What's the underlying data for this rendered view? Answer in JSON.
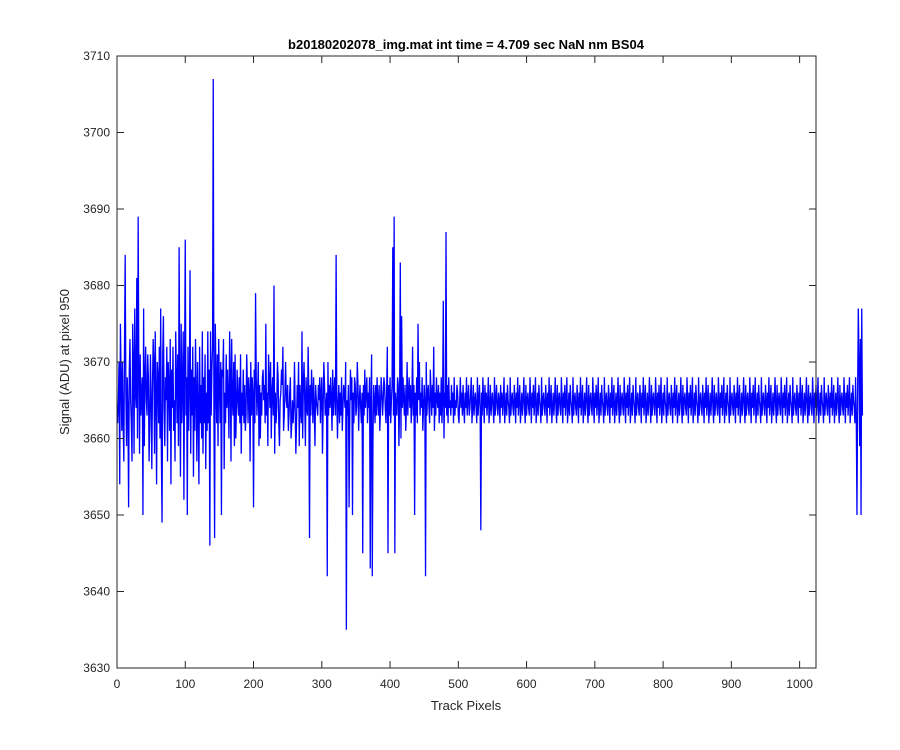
{
  "chart_data": {
    "type": "line",
    "title": "b20180202078_img.mat int time = 4.709 sec  NaN nm BS04",
    "xlabel": "Track Pixels",
    "ylabel": "Signal (ADU) at pixel 950",
    "xlim": [
      0,
      1024
    ],
    "ylim": [
      3630,
      3710
    ],
    "xticks": [
      0,
      100,
      200,
      300,
      400,
      500,
      600,
      700,
      800,
      900,
      1000
    ],
    "yticks": [
      3630,
      3640,
      3650,
      3660,
      3670,
      3680,
      3690,
      3700,
      3710
    ],
    "grid": false,
    "legend": "none",
    "series": [
      {
        "color": "#0000ff",
        "x_start": 1,
        "x_step": 1,
        "values": [
          3662,
          3665,
          3670,
          3654,
          3675,
          3668,
          3661,
          3670,
          3662,
          3657,
          3672,
          3684,
          3666,
          3659,
          3668,
          3664,
          3651,
          3669,
          3673,
          3665,
          3662,
          3657,
          3675,
          3670,
          3658,
          3677,
          3666,
          3664,
          3681,
          3660,
          3689,
          3669,
          3658,
          3671,
          3663,
          3666,
          3668,
          3650,
          3677,
          3659,
          3668,
          3672,
          3665,
          3663,
          3671,
          3668,
          3657,
          3662,
          3671,
          3665,
          3656,
          3667,
          3673,
          3670,
          3658,
          3674,
          3666,
          3654,
          3670,
          3668,
          3662,
          3672,
          3660,
          3677,
          3658,
          3649,
          3671,
          3676,
          3664,
          3659,
          3668,
          3665,
          3672,
          3657,
          3670,
          3667,
          3661,
          3673,
          3654,
          3669,
          3664,
          3672,
          3661,
          3665,
          3657,
          3674,
          3668,
          3662,
          3671,
          3659,
          3685,
          3666,
          3655,
          3675,
          3662,
          3667,
          3674,
          3652,
          3670,
          3686,
          3663,
          3668,
          3650,
          3672,
          3661,
          3667,
          3682,
          3658,
          3669,
          3663,
          3672,
          3655,
          3668,
          3661,
          3673,
          3666,
          3657,
          3670,
          3664,
          3654,
          3672,
          3662,
          3667,
          3660,
          3674,
          3658,
          3668,
          3662,
          3671,
          3656,
          3666,
          3661,
          3674,
          3662,
          3669,
          3646,
          3674,
          3663,
          3669,
          3672,
          3707,
          3663,
          3647,
          3675,
          3668,
          3662,
          3671,
          3659,
          3673,
          3667,
          3662,
          3670,
          3650,
          3669,
          3668,
          3673,
          3656,
          3666,
          3662,
          3671,
          3664,
          3669,
          3665,
          3660,
          3674,
          3668,
          3657,
          3673,
          3665,
          3663,
          3670,
          3659,
          3671,
          3660,
          3664,
          3669,
          3665,
          3663,
          3668,
          3662,
          3671,
          3658,
          3666,
          3663,
          3669,
          3662,
          3667,
          3661,
          3663,
          3671,
          3667,
          3662,
          3668,
          3666,
          3657,
          3670,
          3663,
          3668,
          3666,
          3651,
          3669,
          3662,
          3679,
          3668,
          3663,
          3666,
          3670,
          3659,
          3667,
          3660,
          3666,
          3663,
          3668,
          3669,
          3665,
          3667,
          3662,
          3675,
          3663,
          3666,
          3659,
          3671,
          3668,
          3664,
          3670,
          3660,
          3666,
          3668,
          3663,
          3680,
          3658,
          3666,
          3662,
          3664,
          3670,
          3668,
          3662,
          3659,
          3665,
          3666,
          3669,
          3667,
          3672,
          3661,
          3663,
          3666,
          3670,
          3665,
          3664,
          3667,
          3661,
          3663,
          3666,
          3668,
          3660,
          3662,
          3665,
          3662,
          3664,
          3670,
          3664,
          3658,
          3662,
          3667,
          3664,
          3670,
          3659,
          3667,
          3664,
          3662,
          3674,
          3660,
          3667,
          3670,
          3665,
          3659,
          3668,
          3664,
          3663,
          3672,
          3666,
          3647,
          3667,
          3663,
          3669,
          3666,
          3662,
          3668,
          3664,
          3659,
          3667,
          3665,
          3664,
          3663,
          3667,
          3665,
          3668,
          3662,
          3666,
          3668,
          3658,
          3664,
          3670,
          3667,
          3663,
          3664,
          3666,
          3642,
          3670,
          3663,
          3667,
          3664,
          3668,
          3665,
          3661,
          3669,
          3663,
          3666,
          3668,
          3663,
          3684,
          3665,
          3660,
          3665,
          3667,
          3662,
          3666,
          3663,
          3668,
          3661,
          3664,
          3667,
          3666,
          3664,
          3670,
          3635,
          3665,
          3663,
          3667,
          3651,
          3663,
          3669,
          3665,
          3668,
          3650,
          3666,
          3662,
          3668,
          3667,
          3663,
          3664,
          3670,
          3667,
          3661,
          3665,
          3667,
          3664,
          3662,
          3666,
          3645,
          3667,
          3663,
          3669,
          3664,
          3666,
          3668,
          3662,
          3666,
          3664,
          3668,
          3643,
          3665,
          3671,
          3642,
          3660,
          3667,
          3665,
          3662,
          3667,
          3663,
          3668,
          3665,
          3663,
          3667,
          3661,
          3664,
          3668,
          3666,
          3663,
          3665,
          3668,
          3667,
          3664,
          3662,
          3666,
          3672,
          3645,
          3667,
          3663,
          3668,
          3662,
          3665,
          3667,
          3685,
          3663,
          3689,
          3645,
          3666,
          3664,
          3663,
          3668,
          3667,
          3659,
          3665,
          3683,
          3660,
          3676,
          3664,
          3668,
          3665,
          3663,
          3667,
          3661,
          3664,
          3670,
          3663,
          3666,
          3668,
          3664,
          3667,
          3662,
          3665,
          3672,
          3663,
          3667,
          3650,
          3666,
          3663,
          3668,
          3662,
          3675,
          3665,
          3670,
          3663,
          3666,
          3664,
          3668,
          3661,
          3664,
          3667,
          3665,
          3642,
          3670,
          3663,
          3666,
          3667,
          3664,
          3662,
          3669,
          3666,
          3663,
          3667,
          3664,
          3672,
          3661,
          3666,
          3663,
          3668,
          3665,
          3664,
          3667,
          3662,
          3666,
          3663,
          3668,
          3662,
          3665,
          3678,
          3660,
          3666,
          3664,
          3687,
          3663,
          3667,
          3662,
          3668,
          3664,
          3665,
          3663,
          3667,
          3664,
          3666,
          3662,
          3668,
          3663,
          3665,
          3664,
          3667,
          3666,
          3663,
          3662,
          3665,
          3668,
          3664,
          3666,
          3663,
          3667,
          3664,
          3662,
          3666,
          3664,
          3668,
          3663,
          3665,
          3667,
          3663,
          3664,
          3666,
          3668,
          3662,
          3664,
          3667,
          3663,
          3665,
          3666,
          3664,
          3662,
          3668,
          3663,
          3665,
          3667,
          3664,
          3648,
          3666,
          3663,
          3668,
          3665,
          3662,
          3667,
          3664,
          3666,
          3663,
          3665,
          3668,
          3662,
          3664,
          3667,
          3663,
          3665,
          3666,
          3664,
          3662,
          3668,
          3663,
          3665,
          3667,
          3664,
          3663,
          3666,
          3665,
          3662,
          3667,
          3664,
          3666,
          3663,
          3665,
          3668,
          3662,
          3664,
          3666,
          3663,
          3667,
          3665,
          3664,
          3662,
          3668,
          3663,
          3665,
          3666,
          3664,
          3663,
          3667,
          3665,
          3662,
          3666,
          3664,
          3668,
          3663,
          3665,
          3667,
          3662,
          3664,
          3666,
          3663,
          3665,
          3668,
          3664,
          3662,
          3667,
          3663,
          3665,
          3666,
          3664,
          3663,
          3668,
          3665,
          3662,
          3666,
          3664,
          3667,
          3663,
          3665,
          3668,
          3662,
          3664,
          3666,
          3663,
          3667,
          3665,
          3664,
          3662,
          3668,
          3663,
          3665,
          3666,
          3664,
          3663,
          3667,
          3665,
          3662,
          3666,
          3664,
          3668,
          3663,
          3665,
          3667,
          3662,
          3664,
          3666,
          3663,
          3665,
          3668,
          3664,
          3662,
          3667,
          3663,
          3665,
          3666,
          3664,
          3663,
          3668,
          3665,
          3662,
          3666,
          3664,
          3667,
          3663,
          3665,
          3668,
          3662,
          3664,
          3666,
          3663,
          3667,
          3665,
          3664,
          3662,
          3668,
          3663,
          3665,
          3666,
          3664,
          3663,
          3667,
          3665,
          3662,
          3666,
          3664,
          3668,
          3663,
          3665,
          3667,
          3662,
          3664,
          3666,
          3663,
          3665,
          3668,
          3664,
          3662,
          3667,
          3663,
          3665,
          3666,
          3664,
          3663,
          3668,
          3665,
          3662,
          3666,
          3664,
          3667,
          3663,
          3665,
          3668,
          3662,
          3664,
          3666,
          3663,
          3667,
          3665,
          3664,
          3662,
          3668,
          3663,
          3665,
          3666,
          3664,
          3663,
          3667,
          3665,
          3662,
          3666,
          3664,
          3668,
          3663,
          3665,
          3667,
          3662,
          3664,
          3666,
          3663,
          3665,
          3668,
          3664,
          3662,
          3667,
          3663,
          3665,
          3666,
          3664,
          3663,
          3668,
          3665,
          3662,
          3666,
          3664,
          3667,
          3663,
          3665,
          3668,
          3662,
          3664,
          3666,
          3663,
          3667,
          3665,
          3664,
          3662,
          3668,
          3663,
          3665,
          3666,
          3664,
          3663,
          3667,
          3665,
          3662,
          3666,
          3664,
          3668,
          3663,
          3665,
          3667,
          3662,
          3664,
          3666,
          3663,
          3665,
          3668,
          3664,
          3662,
          3667,
          3663,
          3665,
          3666,
          3664,
          3663,
          3668,
          3665,
          3662,
          3666,
          3664,
          3667,
          3663,
          3665,
          3668,
          3662,
          3664,
          3666,
          3663,
          3667,
          3665,
          3664,
          3662,
          3668,
          3663,
          3665,
          3666,
          3664,
          3663,
          3667,
          3665,
          3662,
          3666,
          3664,
          3668,
          3663,
          3665,
          3667,
          3662,
          3664,
          3666,
          3663,
          3665,
          3668,
          3664,
          3662,
          3667,
          3663,
          3665,
          3666,
          3664,
          3663,
          3668,
          3665,
          3662,
          3666,
          3664,
          3667,
          3663,
          3665,
          3668,
          3662,
          3664,
          3666,
          3663,
          3667,
          3665,
          3664,
          3662,
          3668,
          3663,
          3665,
          3666,
          3664,
          3663,
          3667,
          3665,
          3662,
          3666,
          3664,
          3668,
          3663,
          3665,
          3667,
          3662,
          3664,
          3666,
          3663,
          3665,
          3668,
          3664,
          3662,
          3667,
          3663,
          3665,
          3666,
          3664,
          3663,
          3668,
          3665,
          3662,
          3666,
          3664,
          3667,
          3663,
          3665,
          3668,
          3662,
          3664,
          3666,
          3663,
          3667,
          3665,
          3664,
          3662,
          3668,
          3663,
          3665,
          3666,
          3664,
          3663,
          3667,
          3665,
          3662,
          3666,
          3664,
          3668,
          3663,
          3665,
          3667,
          3662,
          3664,
          3666,
          3663,
          3665,
          3668,
          3664,
          3662,
          3667,
          3663,
          3665,
          3666,
          3664,
          3663,
          3668,
          3665,
          3662,
          3666,
          3664,
          3667,
          3663,
          3665,
          3668,
          3662,
          3664,
          3666,
          3663,
          3667,
          3665,
          3664,
          3662,
          3668,
          3663,
          3665,
          3666,
          3664,
          3663,
          3667,
          3665,
          3662,
          3666,
          3664,
          3668,
          3663,
          3665,
          3667,
          3662,
          3664,
          3666,
          3663,
          3665,
          3668,
          3664,
          3662,
          3667,
          3663,
          3665,
          3666,
          3664,
          3663,
          3668,
          3665,
          3662,
          3666,
          3664,
          3667,
          3663,
          3665,
          3668,
          3662,
          3664,
          3666,
          3663,
          3667,
          3665,
          3664,
          3662,
          3668,
          3663,
          3665,
          3666,
          3664,
          3663,
          3667,
          3665,
          3662,
          3666,
          3664,
          3668,
          3663,
          3665,
          3667,
          3662,
          3664,
          3666,
          3663,
          3665,
          3668,
          3664,
          3662,
          3667,
          3663,
          3665,
          3666,
          3664,
          3663,
          3668,
          3665,
          3662,
          3666,
          3664,
          3667,
          3663,
          3665,
          3668,
          3662,
          3664,
          3666,
          3663,
          3667,
          3665,
          3664,
          3662,
          3668,
          3663,
          3665,
          3666,
          3664,
          3663,
          3667,
          3665,
          3662,
          3666,
          3664,
          3668,
          3663,
          3665,
          3667,
          3662,
          3664,
          3666,
          3663,
          3665,
          3668,
          3664,
          3662,
          3667,
          3663,
          3665,
          3666,
          3664,
          3663,
          3668,
          3665,
          3662,
          3666,
          3664,
          3667,
          3663,
          3665,
          3668,
          3662,
          3664,
          3666,
          3663,
          3667,
          3665,
          3664,
          3662,
          3668,
          3663,
          3650,
          3666,
          3677,
          3670,
          3659,
          3673,
          3650,
          3677,
          3663
        ]
      }
    ]
  }
}
